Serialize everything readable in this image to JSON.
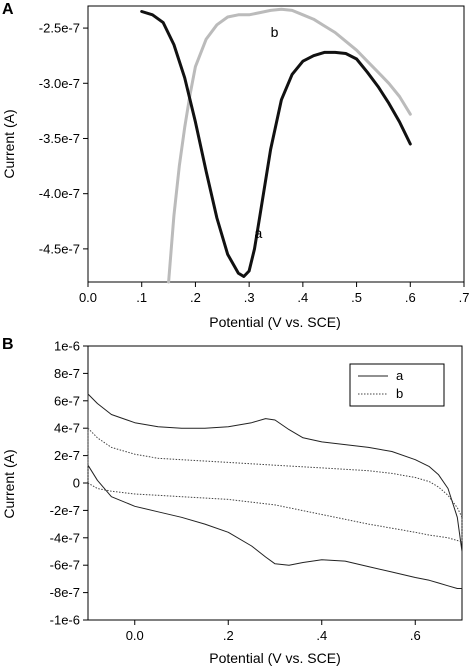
{
  "chart_data": [
    {
      "type": "line",
      "panel": "A",
      "title": "",
      "xlabel": "Potential (V vs. SCE)",
      "ylabel": "Current (A)",
      "xlim": [
        0.0,
        0.7
      ],
      "ylim": [
        -4.8e-07,
        -2.3e-07
      ],
      "xticks": [
        0.0,
        0.1,
        0.2,
        0.3,
        0.4,
        0.5,
        0.6,
        0.7
      ],
      "xtick_labels": [
        "0.0",
        ".1",
        ".2",
        ".3",
        ".4",
        ".5",
        ".6",
        ".7"
      ],
      "yticks": [
        -2.5e-07,
        -3e-07,
        -3.5e-07,
        -4e-07,
        -4.5e-07
      ],
      "ytick_labels": [
        "-2.5e-7",
        "-3.0e-7",
        "-3.5e-7",
        "-4.0e-7",
        "-4.5e-7"
      ],
      "grid": false,
      "series": [
        {
          "name": "a",
          "color": "#111111",
          "x": [
            0.1,
            0.12,
            0.14,
            0.16,
            0.18,
            0.2,
            0.22,
            0.24,
            0.26,
            0.28,
            0.29,
            0.3,
            0.31,
            0.32,
            0.34,
            0.36,
            0.38,
            0.4,
            0.42,
            0.44,
            0.46,
            0.48,
            0.5,
            0.52,
            0.54,
            0.56,
            0.58,
            0.6
          ],
          "y": [
            -2.35e-07,
            -2.38e-07,
            -2.45e-07,
            -2.65e-07,
            -2.95e-07,
            -3.35e-07,
            -3.8e-07,
            -4.22e-07,
            -4.55e-07,
            -4.72e-07,
            -4.75e-07,
            -4.7e-07,
            -4.5e-07,
            -4.2e-07,
            -3.6e-07,
            -3.15e-07,
            -2.92e-07,
            -2.8e-07,
            -2.75e-07,
            -2.72e-07,
            -2.72e-07,
            -2.73e-07,
            -2.78e-07,
            -2.9e-07,
            -3.03e-07,
            -3.18e-07,
            -3.35e-07,
            -3.55e-07
          ]
        },
        {
          "name": "b",
          "color": "#bbbbbb",
          "x": [
            0.15,
            0.16,
            0.17,
            0.18,
            0.19,
            0.2,
            0.22,
            0.24,
            0.26,
            0.28,
            0.3,
            0.32,
            0.34,
            0.36,
            0.38,
            0.4,
            0.42,
            0.44,
            0.46,
            0.48,
            0.5,
            0.52,
            0.54,
            0.56,
            0.58,
            0.6
          ],
          "y": [
            -4.8e-07,
            -4.2e-07,
            -3.75e-07,
            -3.4e-07,
            -3.1e-07,
            -2.85e-07,
            -2.6e-07,
            -2.47e-07,
            -2.4e-07,
            -2.38e-07,
            -2.38e-07,
            -2.36e-07,
            -2.34e-07,
            -2.33e-07,
            -2.34e-07,
            -2.38e-07,
            -2.42e-07,
            -2.48e-07,
            -2.54e-07,
            -2.62e-07,
            -2.7e-07,
            -2.8e-07,
            -2.9e-07,
            -3e-07,
            -3.12e-07,
            -3.28e-07
          ]
        }
      ],
      "annotations": [
        {
          "text": "a",
          "x": 0.31,
          "y": -4.4e-07
        },
        {
          "text": "b",
          "x": 0.34,
          "y": -2.58e-07
        }
      ]
    },
    {
      "type": "line",
      "panel": "B",
      "title": "",
      "xlabel": "Potential (V vs. SCE)",
      "ylabel": "Current (A)",
      "xlim": [
        -0.1,
        0.7
      ],
      "ylim": [
        -1e-06,
        1e-06
      ],
      "xticks": [
        0.0,
        0.2,
        0.4,
        0.6
      ],
      "xtick_labels": [
        "0.0",
        ".2",
        ".4",
        ".6"
      ],
      "yticks": [
        1e-06,
        8e-07,
        6e-07,
        4e-07,
        2e-07,
        0,
        -2e-07,
        -4e-07,
        -6e-07,
        -8e-07,
        -1e-06
      ],
      "ytick_labels": [
        "1e-6",
        "8e-7",
        "6e-7",
        "4e-7",
        "2e-7",
        "0",
        "-2e-7",
        "-4e-7",
        "-6e-7",
        "-8e-7",
        "-1e-6"
      ],
      "grid": false,
      "legend": {
        "position": "top-right",
        "entries": [
          "a",
          "b"
        ]
      },
      "series": [
        {
          "name": "a",
          "style": "solid",
          "upper": {
            "x": [
              -0.1,
              -0.08,
              -0.05,
              0.0,
              0.05,
              0.1,
              0.15,
              0.2,
              0.25,
              0.28,
              0.3,
              0.33,
              0.36,
              0.4,
              0.45,
              0.5,
              0.55,
              0.6,
              0.63,
              0.65,
              0.67,
              0.69,
              0.7
            ],
            "y": [
              6.5e-07,
              5.8e-07,
              5e-07,
              4.4e-07,
              4.1e-07,
              4e-07,
              4e-07,
              4.1e-07,
              4.4e-07,
              4.7e-07,
              4.6e-07,
              3.9e-07,
              3.3e-07,
              3e-07,
              2.8e-07,
              2.6e-07,
              2.3e-07,
              1.7e-07,
              1.2e-07,
              6e-08,
              -4e-08,
              -2.5e-07,
              -5e-07
            ]
          },
          "lower": {
            "x": [
              -0.1,
              -0.08,
              -0.05,
              0.0,
              0.05,
              0.1,
              0.15,
              0.2,
              0.25,
              0.28,
              0.3,
              0.33,
              0.36,
              0.4,
              0.45,
              0.5,
              0.55,
              0.6,
              0.63,
              0.65,
              0.67,
              0.69,
              0.7
            ],
            "y": [
              1.3e-07,
              2e-08,
              -1e-07,
              -1.7e-07,
              -2.1e-07,
              -2.5e-07,
              -3e-07,
              -3.6e-07,
              -4.6e-07,
              -5.4e-07,
              -5.9e-07,
              -6e-07,
              -5.8e-07,
              -5.6e-07,
              -5.7e-07,
              -6.1e-07,
              -6.5e-07,
              -6.9e-07,
              -7.1e-07,
              -7.3e-07,
              -7.5e-07,
              -7.7e-07,
              -7.7e-07
            ]
          }
        },
        {
          "name": "b",
          "style": "dotted",
          "upper": {
            "x": [
              -0.1,
              -0.08,
              -0.05,
              0.0,
              0.05,
              0.1,
              0.2,
              0.3,
              0.4,
              0.5,
              0.55,
              0.6,
              0.63,
              0.65,
              0.67,
              0.69,
              0.7
            ],
            "y": [
              4e-07,
              3.3e-07,
              2.6e-07,
              2.1e-07,
              1.8e-07,
              1.7e-07,
              1.5e-07,
              1.3e-07,
              1.1e-07,
              9e-08,
              7e-08,
              4e-08,
              1e-08,
              -3e-08,
              -9e-08,
              -1.8e-07,
              -2.5e-07
            ]
          },
          "lower": {
            "x": [
              -0.1,
              -0.08,
              -0.05,
              0.0,
              0.05,
              0.1,
              0.2,
              0.3,
              0.4,
              0.5,
              0.55,
              0.6,
              0.63,
              0.65,
              0.67,
              0.69,
              0.7
            ],
            "y": [
              0.0,
              -4e-08,
              -6e-08,
              -8e-08,
              -9e-08,
              -1e-07,
              -1.2e-07,
              -1.6e-07,
              -2.3e-07,
              -3e-07,
              -3.3e-07,
              -3.6e-07,
              -3.8e-07,
              -3.9e-07,
              -4e-07,
              -4.2e-07,
              -4.3e-07
            ]
          }
        }
      ]
    }
  ],
  "panel_labels": [
    "A",
    "B"
  ]
}
